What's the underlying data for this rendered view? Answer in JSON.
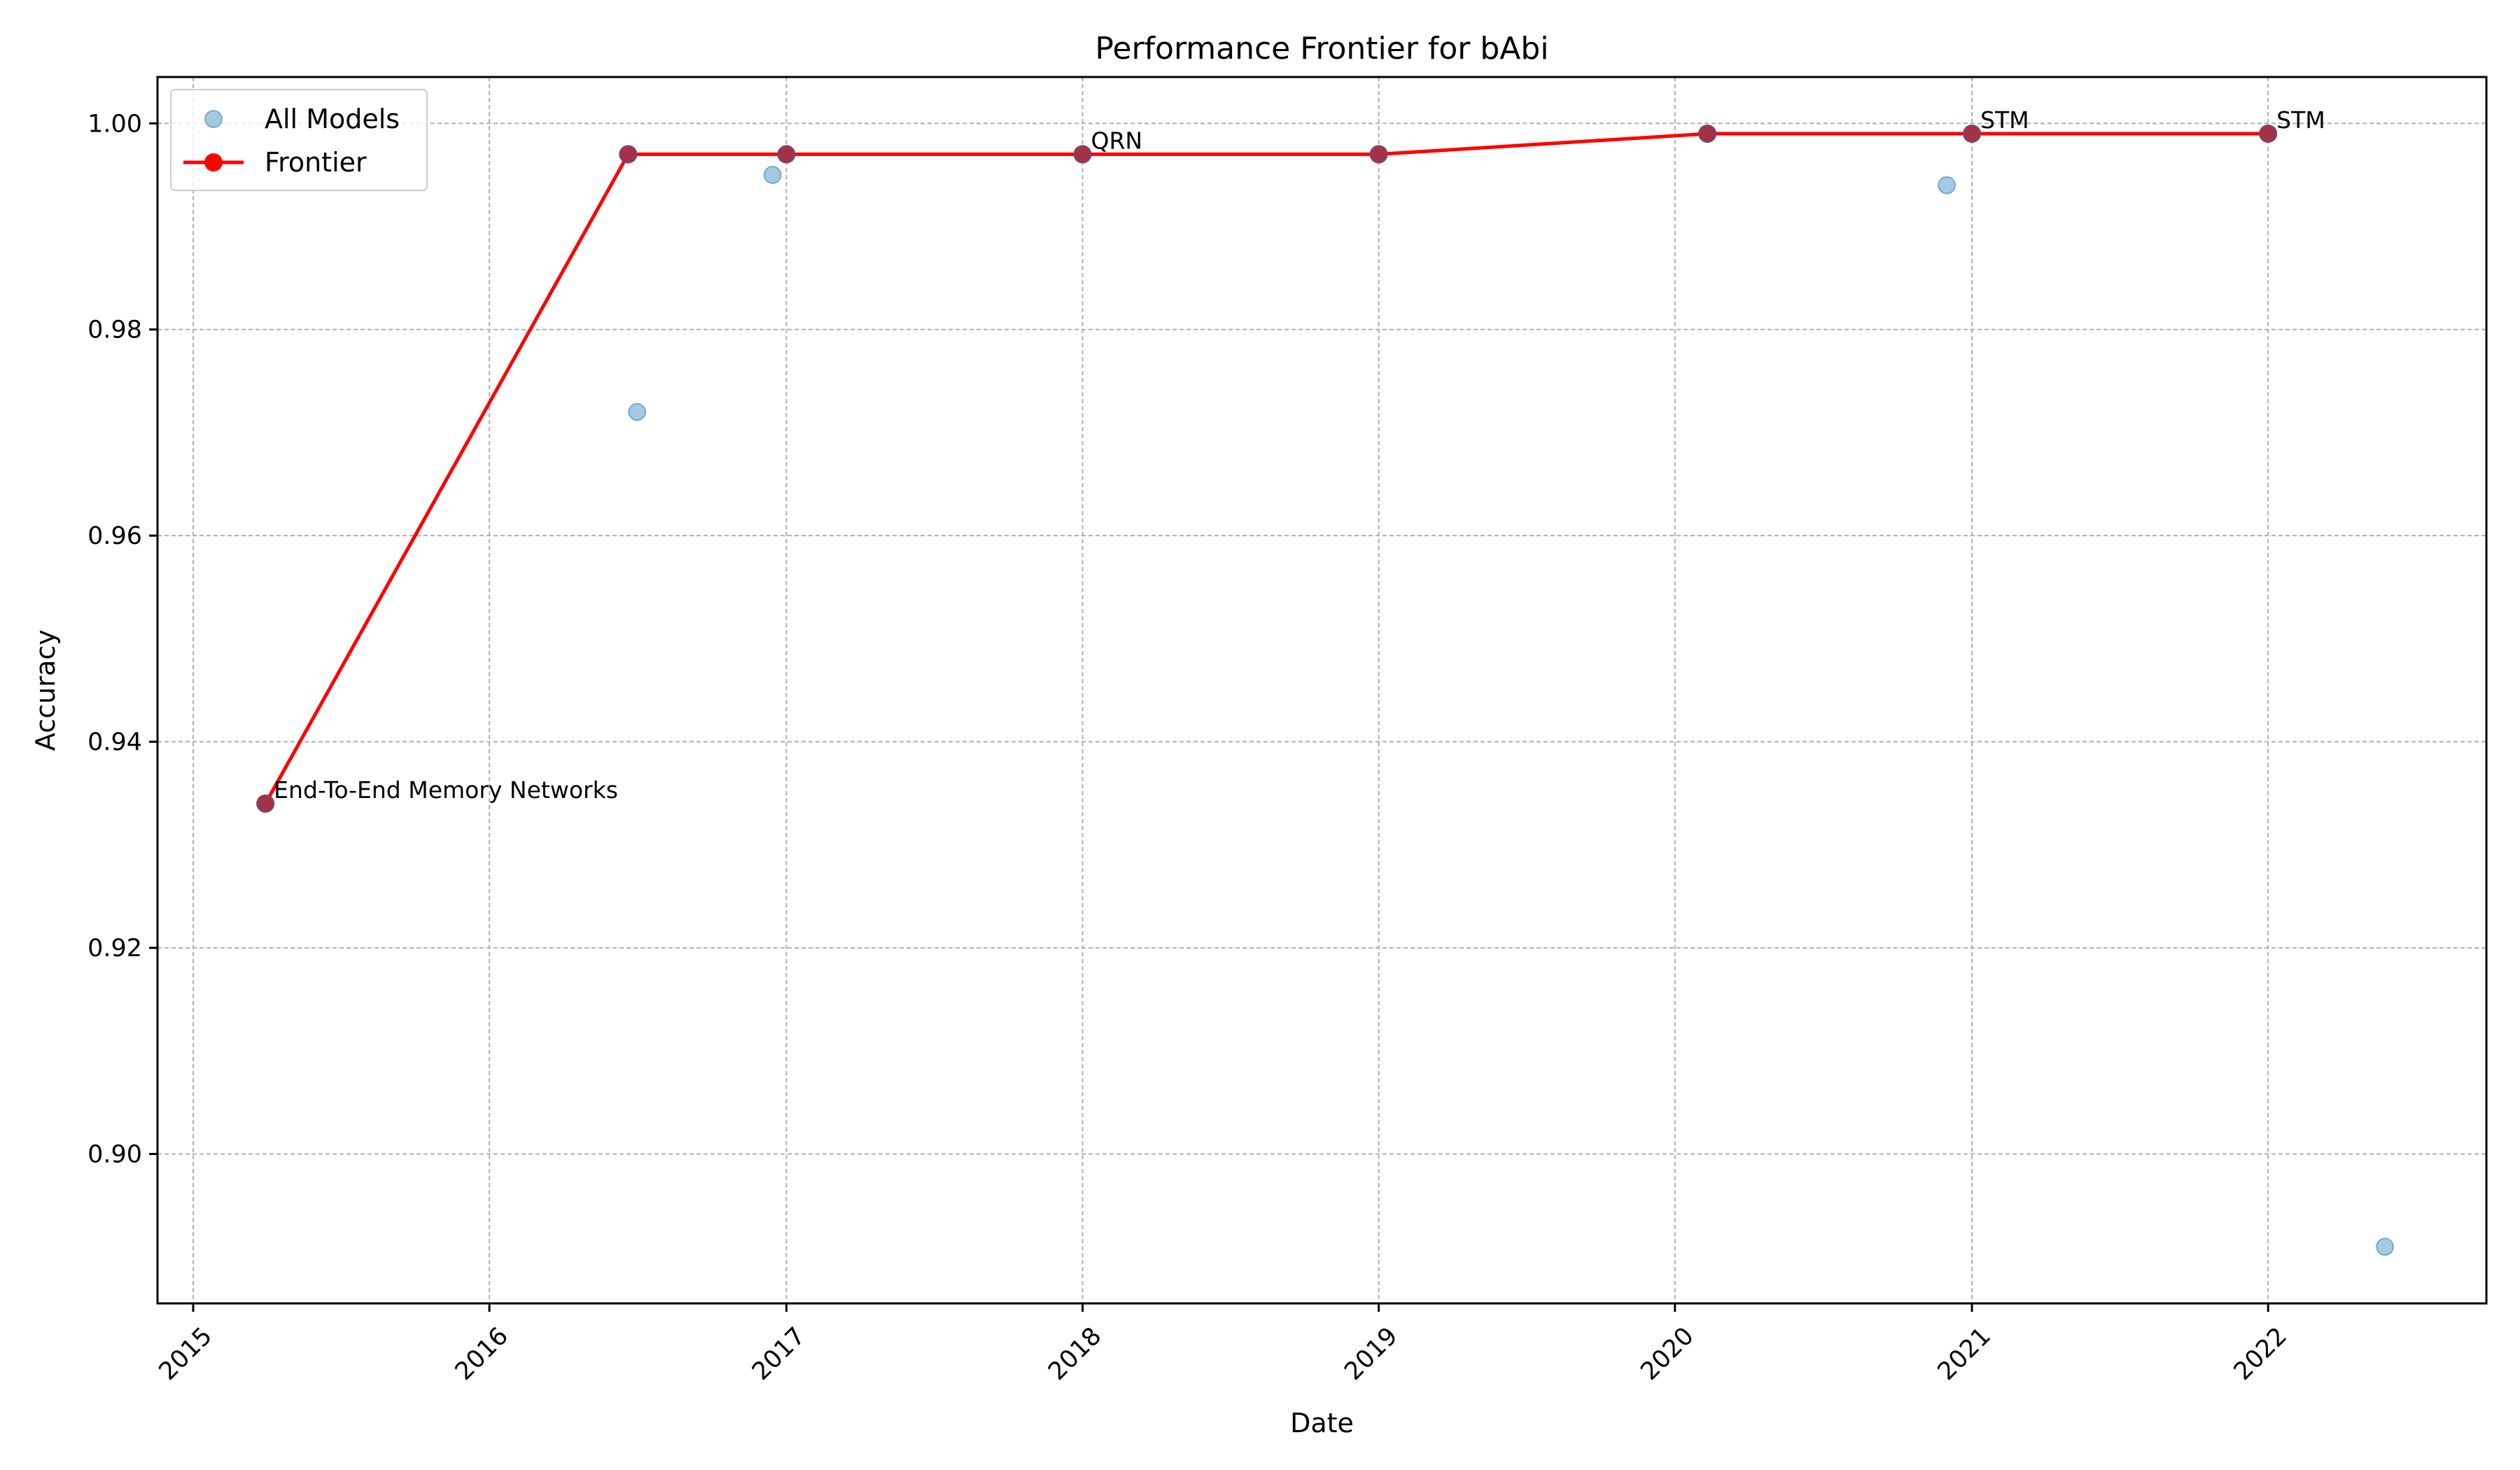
{
  "chart_data": {
    "type": "scatter",
    "title": "Performance Frontier for bAbi",
    "xlabel": "Date",
    "ylabel": "Accuracy",
    "x_axis_type": "date",
    "xlim": [
      "2014-11-18",
      "2022-09-27"
    ],
    "ylim": [
      0.8855,
      1.0045
    ],
    "x_ticks": [
      "2015-01-01",
      "2016-01-01",
      "2017-01-01",
      "2018-01-01",
      "2019-01-01",
      "2020-01-01",
      "2021-01-01",
      "2022-01-01"
    ],
    "x_tick_labels": [
      "2015",
      "2016",
      "2017",
      "2018",
      "2019",
      "2020",
      "2021",
      "2022"
    ],
    "x_tick_rotation_deg": 45,
    "y_ticks": [
      0.9,
      0.92,
      0.94,
      0.96,
      0.98,
      1.0
    ],
    "y_tick_labels": [
      "0.90",
      "0.92",
      "0.94",
      "0.96",
      "0.98",
      "1.00"
    ],
    "grid": true,
    "legend_position": "top-left",
    "series": [
      {
        "name": "All Models",
        "kind": "scatter",
        "color": "#1f77b4",
        "alpha": 0.4,
        "points": [
          {
            "x": "2015-03-31",
            "y": 0.934
          },
          {
            "x": "2016-06-20",
            "y": 0.997
          },
          {
            "x": "2016-07-01",
            "y": 0.972
          },
          {
            "x": "2016-12-15",
            "y": 0.995
          },
          {
            "x": "2017-01-01",
            "y": 0.997
          },
          {
            "x": "2018-01-01",
            "y": 0.997
          },
          {
            "x": "2019-01-01",
            "y": 0.997
          },
          {
            "x": "2020-02-10",
            "y": 0.999
          },
          {
            "x": "2020-12-01",
            "y": 0.994
          },
          {
            "x": "2021-01-01",
            "y": 0.999
          },
          {
            "x": "2022-01-01",
            "y": 0.999
          },
          {
            "x": "2022-05-25",
            "y": 0.891
          }
        ]
      },
      {
        "name": "Frontier",
        "kind": "line+markers",
        "color": "#ff0000",
        "points": [
          {
            "x": "2015-03-31",
            "y": 0.934
          },
          {
            "x": "2016-06-20",
            "y": 0.997
          },
          {
            "x": "2017-01-01",
            "y": 0.997
          },
          {
            "x": "2018-01-01",
            "y": 0.997
          },
          {
            "x": "2019-01-01",
            "y": 0.997
          },
          {
            "x": "2020-02-10",
            "y": 0.999
          },
          {
            "x": "2021-01-01",
            "y": 0.999
          },
          {
            "x": "2022-01-01",
            "y": 0.999
          }
        ]
      }
    ],
    "annotations": [
      {
        "text": "End-To-End Memory Networks",
        "x": "2015-03-31",
        "y": 0.934
      },
      {
        "text": "QRN",
        "x": "2018-01-01",
        "y": 0.997
      },
      {
        "text": "STM",
        "x": "2021-01-01",
        "y": 0.999
      },
      {
        "text": "STM",
        "x": "2022-01-01",
        "y": 0.999
      }
    ]
  }
}
